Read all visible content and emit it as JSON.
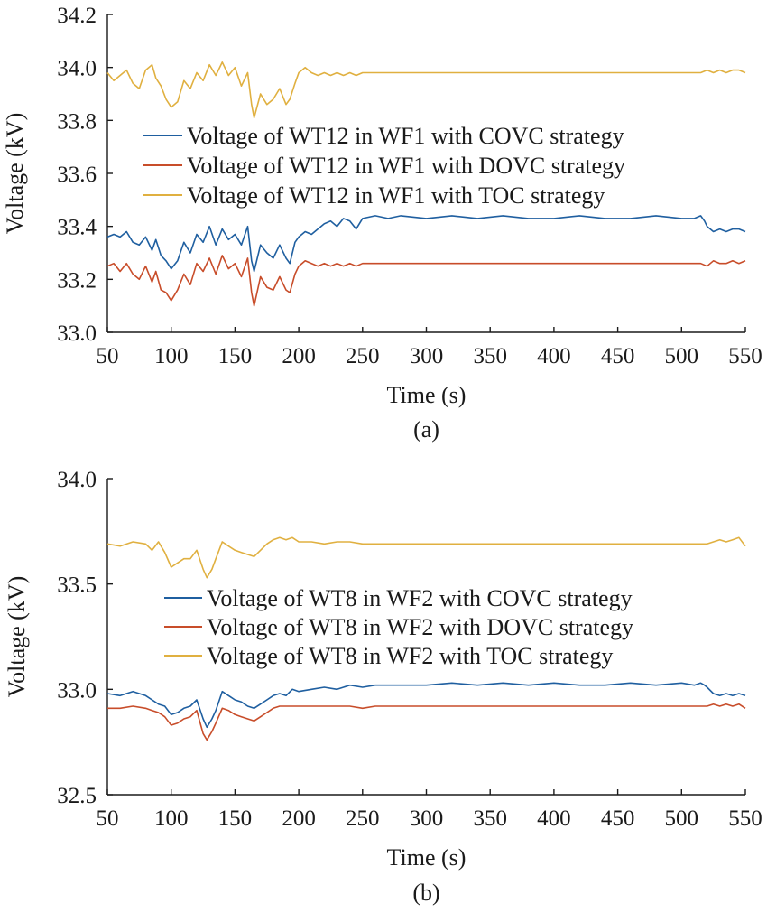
{
  "chart_data": [
    {
      "type": "line",
      "caption": "(a)",
      "xlabel": "Time (s)",
      "ylabel": "Voltage (kV)",
      "xlim": [
        50,
        550
      ],
      "ylim": [
        33.0,
        34.2
      ],
      "xticks": [
        "50",
        "100",
        "150",
        "200",
        "250",
        "300",
        "350",
        "400",
        "450",
        "500",
        "550"
      ],
      "yticks": [
        "33.0",
        "33.2",
        "33.4",
        "33.6",
        "33.8",
        "34.0",
        "34.2"
      ],
      "legend_position": "center",
      "grid": false,
      "series": [
        {
          "name": "Voltage of WT12 in WF1 with COVC strategy",
          "color": "#1f5fa0",
          "x": [
            50,
            55,
            60,
            65,
            70,
            75,
            80,
            85,
            88,
            92,
            96,
            100,
            105,
            110,
            115,
            120,
            125,
            130,
            135,
            140,
            145,
            150,
            155,
            160,
            163,
            165,
            170,
            175,
            180,
            185,
            190,
            193,
            197,
            200,
            205,
            210,
            215,
            220,
            225,
            230,
            235,
            240,
            245,
            250,
            260,
            270,
            280,
            300,
            320,
            340,
            360,
            380,
            400,
            420,
            440,
            460,
            480,
            500,
            510,
            515,
            518,
            520,
            525,
            530,
            535,
            540,
            545,
            550
          ],
          "y": [
            33.36,
            33.37,
            33.36,
            33.38,
            33.34,
            33.33,
            33.36,
            33.31,
            33.35,
            33.29,
            33.27,
            33.24,
            33.27,
            33.34,
            33.3,
            33.37,
            33.34,
            33.4,
            33.33,
            33.39,
            33.35,
            33.37,
            33.33,
            33.4,
            33.27,
            33.23,
            33.33,
            33.3,
            33.28,
            33.33,
            33.28,
            33.26,
            33.34,
            33.36,
            33.38,
            33.37,
            33.39,
            33.41,
            33.42,
            33.4,
            33.43,
            33.42,
            33.39,
            33.43,
            33.44,
            33.43,
            33.44,
            33.43,
            33.44,
            33.43,
            33.44,
            33.43,
            33.43,
            33.44,
            33.43,
            33.43,
            33.44,
            33.43,
            33.43,
            33.44,
            33.42,
            33.4,
            33.38,
            33.39,
            33.38,
            33.39,
            33.39,
            33.38
          ]
        },
        {
          "name": "Voltage of WT12 in WF1 with DOVC strategy",
          "color": "#c84d2a",
          "x": [
            50,
            55,
            60,
            65,
            70,
            75,
            80,
            85,
            88,
            92,
            96,
            100,
            105,
            110,
            115,
            120,
            125,
            130,
            135,
            140,
            145,
            150,
            155,
            160,
            163,
            165,
            170,
            175,
            180,
            185,
            190,
            193,
            197,
            200,
            205,
            210,
            215,
            220,
            225,
            230,
            235,
            240,
            245,
            250,
            260,
            280,
            300,
            350,
            400,
            450,
            500,
            510,
            515,
            520,
            525,
            530,
            535,
            540,
            545,
            550
          ],
          "y": [
            33.25,
            33.26,
            33.23,
            33.26,
            33.22,
            33.2,
            33.25,
            33.19,
            33.23,
            33.16,
            33.15,
            33.12,
            33.16,
            33.22,
            33.18,
            33.26,
            33.23,
            33.28,
            33.22,
            33.29,
            33.24,
            33.26,
            33.21,
            33.28,
            33.15,
            33.1,
            33.21,
            33.17,
            33.16,
            33.21,
            33.16,
            33.15,
            33.22,
            33.25,
            33.27,
            33.26,
            33.25,
            33.26,
            33.25,
            33.26,
            33.25,
            33.26,
            33.25,
            33.26,
            33.26,
            33.26,
            33.26,
            33.26,
            33.26,
            33.26,
            33.26,
            33.26,
            33.26,
            33.25,
            33.27,
            33.26,
            33.26,
            33.27,
            33.26,
            33.27
          ]
        },
        {
          "name": "Voltage of WT12 in WF1 with TOC strategy",
          "color": "#e0b040",
          "x": [
            50,
            55,
            60,
            65,
            70,
            75,
            80,
            85,
            88,
            92,
            96,
            100,
            105,
            110,
            115,
            120,
            125,
            130,
            135,
            140,
            145,
            150,
            155,
            160,
            163,
            165,
            170,
            175,
            180,
            185,
            190,
            193,
            197,
            200,
            205,
            210,
            215,
            220,
            225,
            230,
            235,
            240,
            245,
            250,
            260,
            280,
            300,
            350,
            400,
            450,
            500,
            510,
            515,
            520,
            525,
            530,
            535,
            540,
            545,
            550
          ],
          "y": [
            33.98,
            33.95,
            33.97,
            33.99,
            33.94,
            33.92,
            33.99,
            34.01,
            33.96,
            33.93,
            33.88,
            33.85,
            33.87,
            33.95,
            33.92,
            33.98,
            33.95,
            34.01,
            33.97,
            34.02,
            33.97,
            34.0,
            33.93,
            33.98,
            33.86,
            33.81,
            33.9,
            33.86,
            33.88,
            33.92,
            33.86,
            33.88,
            33.94,
            33.98,
            34.0,
            33.98,
            33.97,
            33.98,
            33.97,
            33.98,
            33.97,
            33.98,
            33.97,
            33.98,
            33.98,
            33.98,
            33.98,
            33.98,
            33.98,
            33.98,
            33.98,
            33.98,
            33.98,
            33.99,
            33.98,
            33.99,
            33.98,
            33.99,
            33.99,
            33.98
          ]
        }
      ]
    },
    {
      "type": "line",
      "caption": "(b)",
      "xlabel": "Time (s)",
      "ylabel": "Voltage (kV)",
      "xlim": [
        50,
        550
      ],
      "ylim": [
        32.5,
        34.0
      ],
      "xticks": [
        "50",
        "100",
        "150",
        "200",
        "250",
        "300",
        "350",
        "400",
        "450",
        "500",
        "550"
      ],
      "yticks": [
        "32.5",
        "33.0",
        "33.5",
        "34.0"
      ],
      "legend_position": "center-right",
      "grid": false,
      "series": [
        {
          "name": "Voltage of WT8 in WF2 with COVC strategy",
          "color": "#1f5fa0",
          "x": [
            50,
            60,
            70,
            80,
            85,
            90,
            95,
            100,
            105,
            110,
            115,
            120,
            125,
            128,
            132,
            135,
            140,
            145,
            150,
            155,
            160,
            165,
            170,
            175,
            180,
            185,
            190,
            195,
            200,
            210,
            220,
            230,
            240,
            250,
            260,
            280,
            300,
            320,
            340,
            360,
            380,
            400,
            420,
            440,
            460,
            480,
            500,
            510,
            515,
            518,
            520,
            525,
            530,
            535,
            540,
            545,
            550
          ],
          "y": [
            32.98,
            32.97,
            32.99,
            32.97,
            32.95,
            32.93,
            32.92,
            32.88,
            32.89,
            32.91,
            32.92,
            32.95,
            32.86,
            32.82,
            32.86,
            32.9,
            32.99,
            32.97,
            32.95,
            32.94,
            32.92,
            32.91,
            32.93,
            32.95,
            32.97,
            32.98,
            32.97,
            33.0,
            32.99,
            33.0,
            33.01,
            33.0,
            33.02,
            33.01,
            33.02,
            33.02,
            33.02,
            33.03,
            33.02,
            33.03,
            33.02,
            33.03,
            33.02,
            33.02,
            33.03,
            33.02,
            33.03,
            33.02,
            33.03,
            33.02,
            33.01,
            32.98,
            32.97,
            32.98,
            32.97,
            32.98,
            32.97
          ]
        },
        {
          "name": "Voltage of WT8 in WF2 with DOVC strategy",
          "color": "#c84d2a",
          "x": [
            50,
            60,
            70,
            80,
            85,
            90,
            95,
            100,
            105,
            110,
            115,
            120,
            125,
            128,
            132,
            135,
            140,
            145,
            150,
            155,
            160,
            165,
            170,
            175,
            180,
            185,
            190,
            195,
            200,
            210,
            220,
            230,
            240,
            250,
            260,
            280,
            300,
            350,
            400,
            450,
            500,
            510,
            515,
            520,
            525,
            530,
            535,
            540,
            545,
            550
          ],
          "y": [
            32.91,
            32.91,
            32.92,
            32.91,
            32.9,
            32.89,
            32.87,
            32.83,
            32.84,
            32.86,
            32.87,
            32.9,
            32.79,
            32.76,
            32.8,
            32.84,
            32.91,
            32.9,
            32.88,
            32.87,
            32.86,
            32.85,
            32.87,
            32.89,
            32.91,
            32.92,
            32.92,
            32.92,
            32.92,
            32.92,
            32.92,
            32.92,
            32.92,
            32.91,
            32.92,
            32.92,
            32.92,
            32.92,
            32.92,
            32.92,
            32.92,
            32.92,
            32.92,
            32.92,
            32.93,
            32.92,
            32.93,
            32.92,
            32.93,
            32.91
          ]
        },
        {
          "name": "Voltage of WT8 in WF2 with TOC strategy",
          "color": "#e0b040",
          "x": [
            50,
            60,
            70,
            80,
            85,
            90,
            95,
            100,
            105,
            110,
            115,
            120,
            125,
            128,
            132,
            135,
            140,
            145,
            150,
            155,
            160,
            165,
            170,
            175,
            180,
            185,
            190,
            195,
            200,
            210,
            220,
            230,
            240,
            250,
            260,
            280,
            300,
            350,
            400,
            450,
            500,
            510,
            515,
            520,
            525,
            530,
            535,
            540,
            545,
            550
          ],
          "y": [
            33.69,
            33.68,
            33.7,
            33.69,
            33.66,
            33.7,
            33.65,
            33.58,
            33.6,
            33.62,
            33.62,
            33.66,
            33.57,
            33.53,
            33.57,
            33.62,
            33.7,
            33.68,
            33.66,
            33.65,
            33.64,
            33.63,
            33.66,
            33.69,
            33.71,
            33.72,
            33.71,
            33.72,
            33.7,
            33.7,
            33.69,
            33.7,
            33.7,
            33.69,
            33.69,
            33.69,
            33.69,
            33.69,
            33.69,
            33.69,
            33.69,
            33.69,
            33.69,
            33.69,
            33.7,
            33.71,
            33.7,
            33.71,
            33.72,
            33.68
          ]
        }
      ]
    }
  ]
}
